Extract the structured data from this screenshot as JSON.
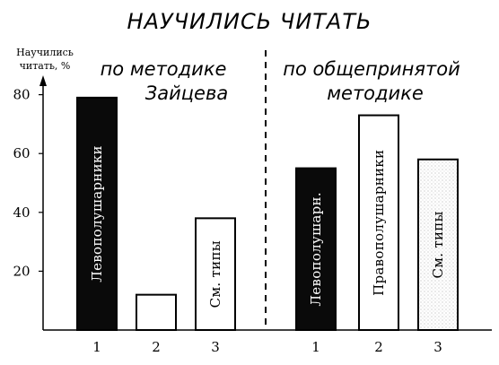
{
  "chart_data": {
    "type": "bar",
    "title": "НАУЧИЛИСЬ ЧИТАТЬ",
    "ylabel": [
      "Научились",
      "читать, %"
    ],
    "ylim": [
      0,
      90
    ],
    "yticks": [
      20,
      40,
      60,
      80
    ],
    "grid": false,
    "groups": [
      {
        "title": [
          "по методике",
          "Зайцева"
        ],
        "categories": [
          "1",
          "2",
          "3"
        ],
        "values": [
          79,
          12,
          38
        ],
        "bar_labels": [
          "Левополушарники",
          "",
          "См. типы"
        ],
        "fills": [
          "black",
          "white",
          "white"
        ]
      },
      {
        "title": [
          "по общепринятой",
          "методике"
        ],
        "categories": [
          "1",
          "2",
          "3"
        ],
        "values": [
          55,
          73,
          58
        ],
        "bar_labels": [
          "Левополушарн.",
          "Правополушарники",
          "См. типы"
        ],
        "fills": [
          "black",
          "white",
          "dotted"
        ]
      }
    ]
  }
}
